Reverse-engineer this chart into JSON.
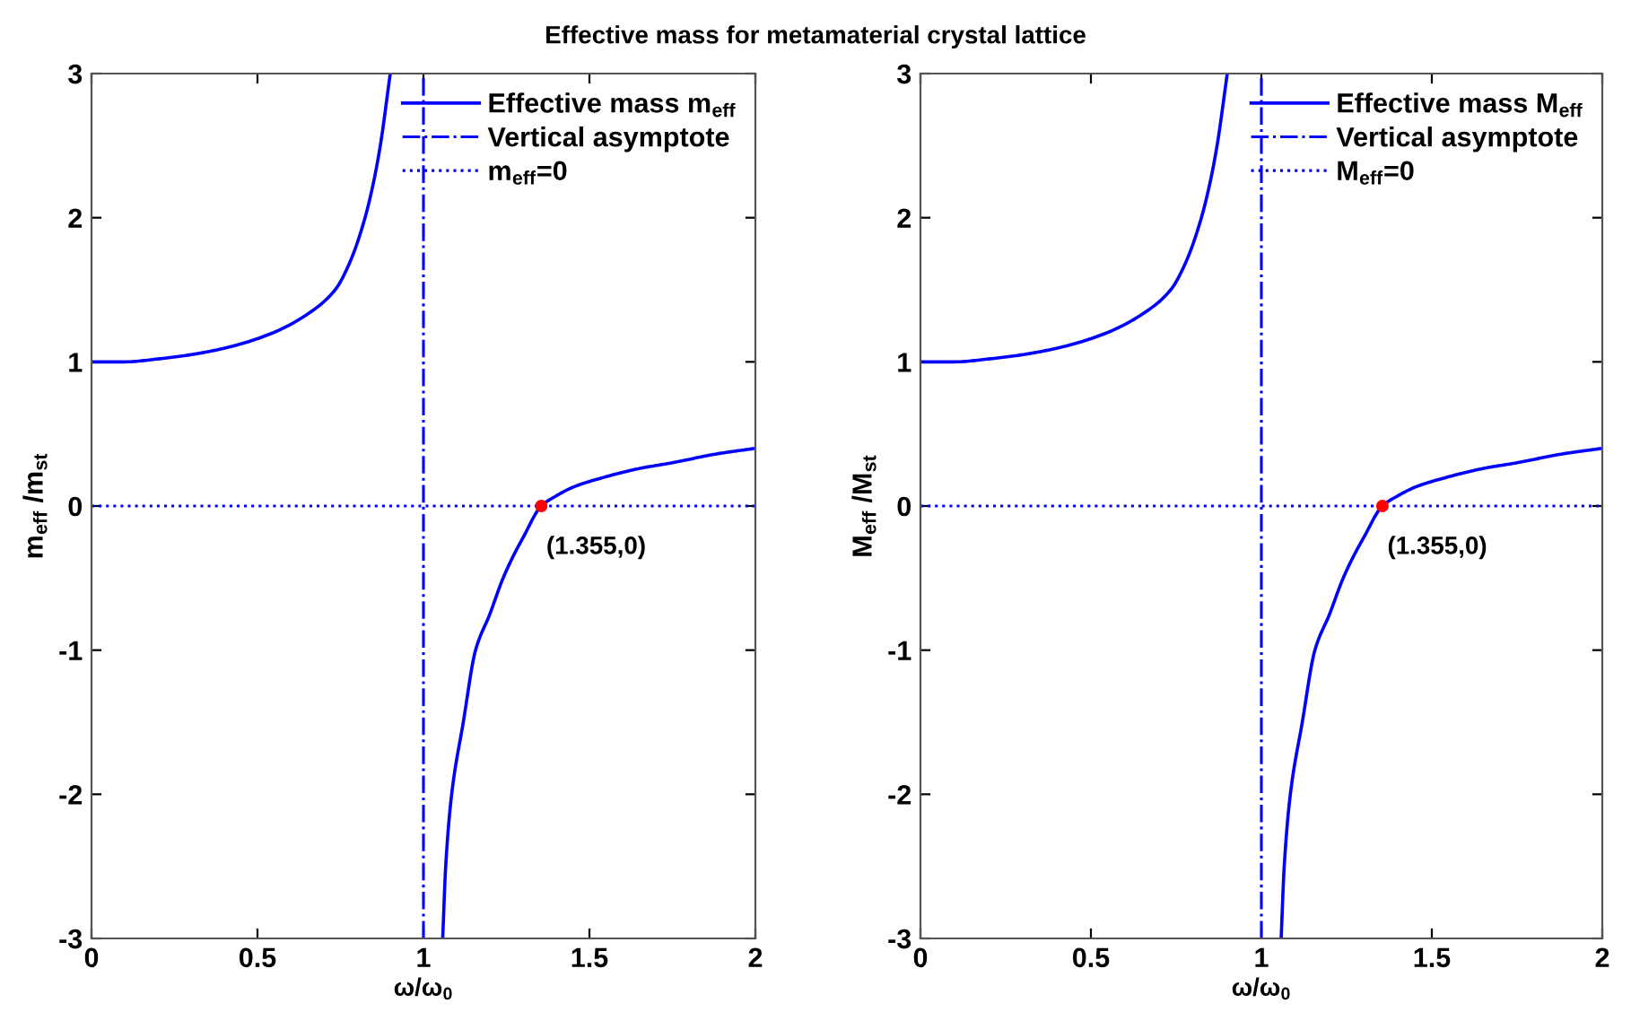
{
  "chart_data": [
    {
      "type": "line",
      "title": "Effective mass for metamaterial crystal lattice",
      "xlabel": "ω/ω$_{0}$",
      "ylabel": "m$_{eff}$ /m$_{st}$",
      "xlim": [
        0,
        2
      ],
      "ylim": [
        -3,
        3
      ],
      "xticks": [
        0,
        0.5,
        1,
        1.5,
        2
      ],
      "yticks": [
        -3,
        -2,
        -1,
        0,
        1,
        2,
        3
      ],
      "grid": false,
      "legend": "top right",
      "series": [
        {
          "name": "Effective mass m$_{eff}$",
          "color": "#0000ff",
          "line_style": "solid",
          "x": [
            0,
            0.1,
            0.2,
            0.3,
            0.41,
            0.545,
            0.65,
            0.734,
            0.78,
            0.824,
            0.85,
            0.87,
            0.9,
            null,
            1.058,
            1.067,
            1.085,
            1.12,
            1.157,
            1.2,
            1.24,
            1.27,
            1.3,
            1.355,
            1.4,
            1.45,
            1.545,
            1.65,
            1.75,
            1.88,
            2
          ],
          "values": [
            1,
            1.0,
            1.02,
            1.05,
            1.1,
            1.2,
            1.33,
            1.5,
            1.7,
            2.0,
            2.25,
            2.5,
            3.0,
            null,
            -3,
            -2.5,
            -2,
            -1.5,
            -1,
            -0.75,
            -0.5,
            -0.35,
            -0.22,
            0,
            0.07,
            0.13,
            0.2,
            0.26,
            0.3,
            0.36,
            0.4
          ]
        },
        {
          "type": "scatter",
          "color": "#ff0000",
          "marker": "circle",
          "x": [
            1.355
          ],
          "values": [
            0
          ]
        }
      ],
      "ref_lines": [
        {
          "axis": "x",
          "value": 1,
          "label": "Vertical asymptote",
          "color": "#0000ff",
          "line_style": "dashdot"
        },
        {
          "axis": "y",
          "value": 0,
          "label": "m$_{eff}$=0",
          "color": "#0000ff",
          "line_style": "dotted"
        }
      ],
      "annotations": [
        {
          "text": "(1.355,0)",
          "x": 1.355,
          "y": 0
        }
      ]
    },
    {
      "type": "line",
      "xlabel": "ω/ω$_{0}$",
      "ylabel": "M$_{eff}$ /M$_{st}$",
      "xlim": [
        0,
        2
      ],
      "ylim": [
        -3,
        3
      ],
      "xticks": [
        0,
        0.5,
        1,
        1.5,
        2
      ],
      "yticks": [
        -3,
        -2,
        -1,
        0,
        1,
        2,
        3
      ],
      "grid": false,
      "legend": "top right",
      "series": [
        {
          "name": "Effective mass M$_{eff}$",
          "color": "#0000ff",
          "line_style": "solid",
          "x": [
            0,
            0.1,
            0.2,
            0.3,
            0.41,
            0.545,
            0.65,
            0.734,
            0.78,
            0.824,
            0.85,
            0.87,
            0.9,
            null,
            1.058,
            1.067,
            1.085,
            1.12,
            1.157,
            1.2,
            1.24,
            1.27,
            1.3,
            1.355,
            1.4,
            1.45,
            1.545,
            1.65,
            1.75,
            1.88,
            2
          ],
          "values": [
            1,
            1.0,
            1.02,
            1.05,
            1.1,
            1.2,
            1.33,
            1.5,
            1.7,
            2.0,
            2.25,
            2.5,
            3.0,
            null,
            -3,
            -2.5,
            -2,
            -1.5,
            -1,
            -0.75,
            -0.5,
            -0.35,
            -0.22,
            0,
            0.07,
            0.13,
            0.2,
            0.26,
            0.3,
            0.36,
            0.4
          ]
        },
        {
          "type": "scatter",
          "color": "#ff0000",
          "marker": "circle",
          "x": [
            1.355
          ],
          "values": [
            0
          ]
        }
      ],
      "ref_lines": [
        {
          "axis": "x",
          "value": 1,
          "label": "Vertical asymptote",
          "color": "#0000ff",
          "line_style": "dashdot"
        },
        {
          "axis": "y",
          "value": 0,
          "label": "M$_{eff}$=0",
          "color": "#0000ff",
          "line_style": "dotted"
        }
      ],
      "annotations": [
        {
          "text": "(1.355,0)",
          "x": 1.355,
          "y": 0
        }
      ]
    }
  ]
}
